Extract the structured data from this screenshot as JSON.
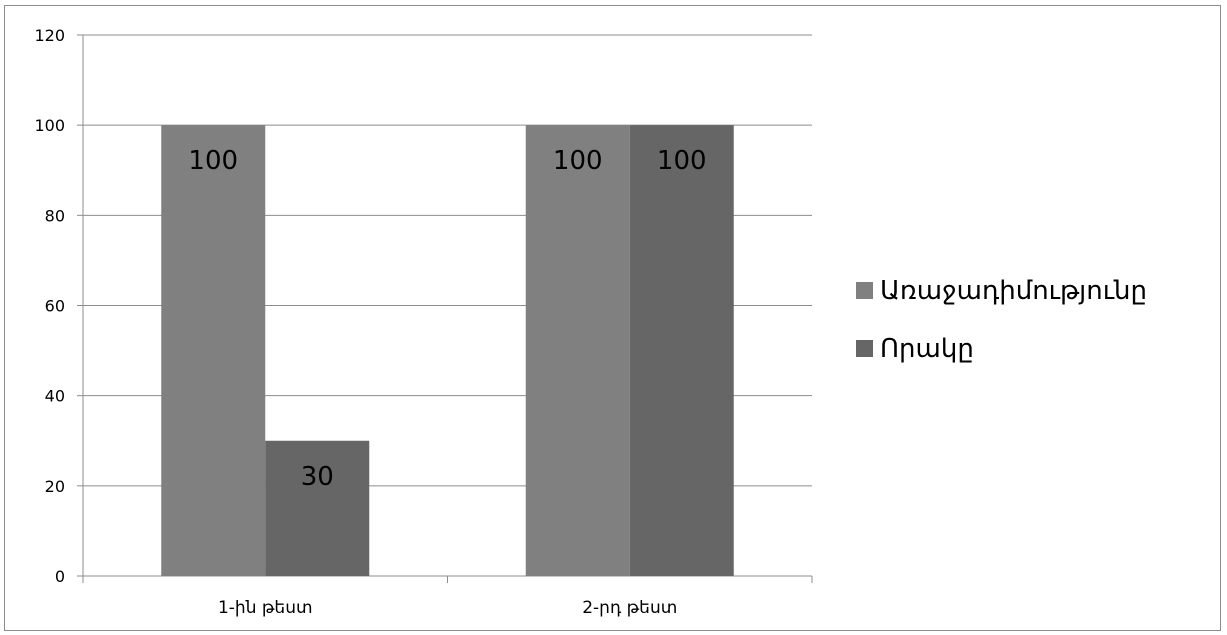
{
  "chart_data": {
    "type": "bar",
    "categories": [
      "1-ին թեստ",
      "2-րդ թեստ"
    ],
    "series": [
      {
        "name": "Առաջադիմությունը",
        "values": [
          100,
          100
        ],
        "color": "#808080"
      },
      {
        "name": "Որակը",
        "values": [
          30,
          100
        ],
        "color": "#666666"
      }
    ],
    "ylim": [
      0,
      120
    ],
    "yticks": [
      0,
      20,
      40,
      60,
      80,
      100,
      120
    ],
    "grid": true,
    "legend_position": "right",
    "data_labels": true
  }
}
